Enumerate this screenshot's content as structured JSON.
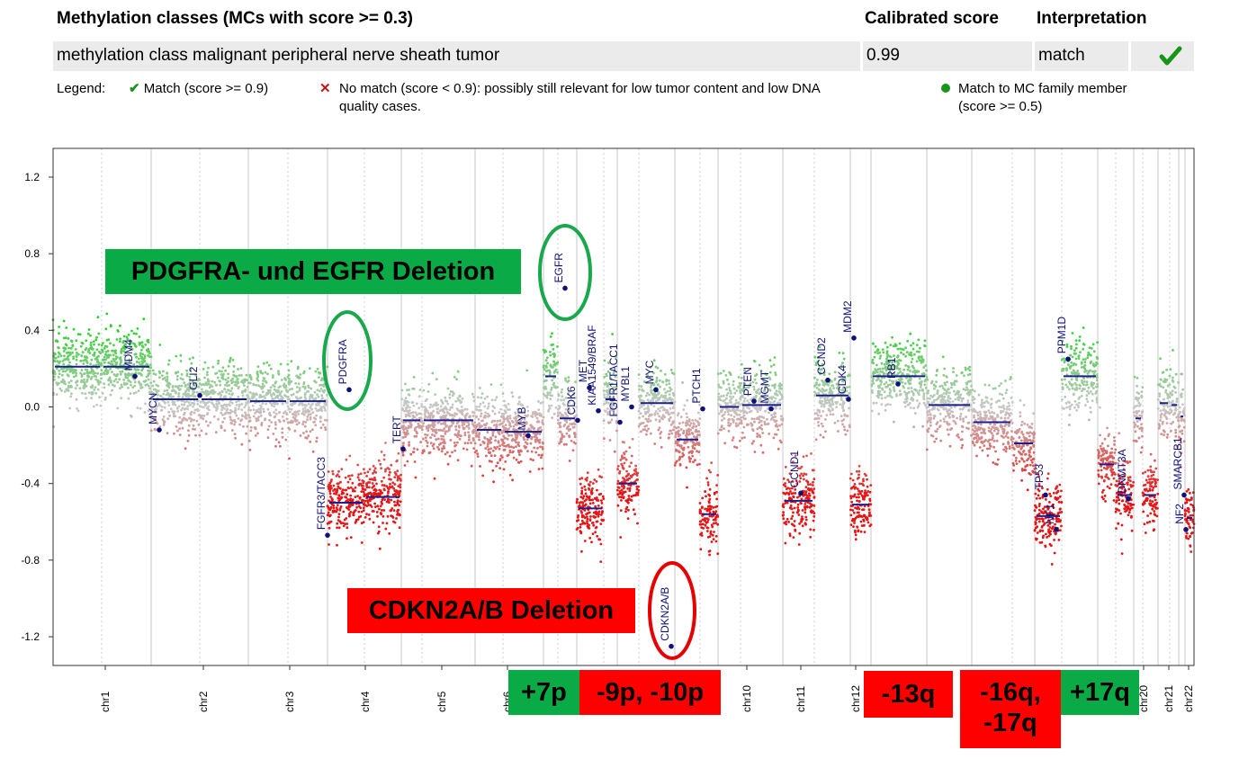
{
  "table": {
    "col_class_header": "Methylation classes (MCs with score >= 0.3)",
    "col_score_header": "Calibrated score",
    "col_interp_header": "Interpretation",
    "row_class": "methylation class malignant peripheral nerve sheath tumor",
    "row_score": "0.99",
    "row_interp": "match",
    "row_icon": "check-icon"
  },
  "legend": {
    "title": "Legend:",
    "match": "Match (score >= 0.9)",
    "no_match_line1": "No match (score < 0.9): possibly still relevant for low tumor content and low DNA",
    "no_match_line2": "quality cases.",
    "family_line1": "Match to MC family member",
    "family_line2": "(score >= 0.5)"
  },
  "annotations": {
    "pdgfra_egfr": "PDGFRA- und EGFR Deletion",
    "cdkn2a": "CDKN2A/B Deletion",
    "gain_7p": "+7p",
    "loss_9p_10p": "-9p, -10p",
    "loss_13q": "-13q",
    "loss_16q_17q_line1": "-16q,",
    "loss_16q_17q_line2": "-17q",
    "gain_17q": "+17q"
  },
  "colors": {
    "gain": "#1ed21e",
    "neutral": "#c8c8c8",
    "loss": "#e61414",
    "segment": "#1c1c8c",
    "gene": "#10107a",
    "ann_green": "#0aaa46",
    "ann_red": "#ff0000",
    "circle_green": "#1aa84c",
    "circle_red": "#e60000"
  },
  "chart_data": {
    "type": "scatter",
    "ylim": [
      -1.35,
      1.35
    ],
    "yticks": [
      "1.2",
      "0.8",
      "0.4",
      "0.0",
      "-0.4",
      "-0.8",
      "-1.2"
    ],
    "ytick_values": [
      1.2,
      0.8,
      0.4,
      0.0,
      -0.4,
      -0.8,
      -1.2
    ],
    "chromosomes": [
      {
        "name": "chr1",
        "p": "0.21",
        "q": "0.21"
      },
      {
        "name": "chr2",
        "p": "0.04",
        "q": "0.04"
      },
      {
        "name": "chr3",
        "p": "0.03",
        "q": "0.03"
      },
      {
        "name": "chr4",
        "p": "-0.50",
        "q": "-0.47"
      },
      {
        "name": "chr5",
        "p": "-0.07",
        "q": "-0.07"
      },
      {
        "name": "chr6",
        "p": "-0.12",
        "q": "-0.13"
      },
      {
        "name": "chr7",
        "p": "0.16",
        "q": "-0.06"
      },
      {
        "name": "chr8",
        "p": "-0.53",
        "q": "0.04"
      },
      {
        "name": "chr9",
        "p": "-0.40",
        "q": "0.02"
      },
      {
        "name": "chr10",
        "p": "-0.17",
        "q": "-0.56"
      },
      {
        "name": "chr11",
        "p": "0.00",
        "q": "0.01"
      },
      {
        "name": "chr12",
        "p": "-0.49",
        "q": "0.06"
      },
      {
        "name": "chr13",
        "p": "",
        "q": "-0.51"
      },
      {
        "name": "chr14",
        "p": "",
        "q": "0.16"
      },
      {
        "name": "chr15",
        "p": "",
        "q": "0.01"
      },
      {
        "name": "chr16",
        "p": "-0.08",
        "q": "-0.19"
      },
      {
        "name": "chr17",
        "p": "-0.57",
        "q": "0.16"
      },
      {
        "name": "chr18",
        "p": "-0.30",
        "q": "-0.46"
      },
      {
        "name": "chr19",
        "p": "-0.06",
        "q": "-0.46"
      },
      {
        "name": "chr20",
        "p": "0.02",
        "q": "0.01"
      },
      {
        "name": "chr21",
        "p": "",
        "q": "-0.05"
      },
      {
        "name": "chr22",
        "p": "",
        "q": "-0.58"
      }
    ],
    "x_tick_labels": [
      "chr1",
      "chr2",
      "chr3",
      "chr4",
      "chr5",
      "chr6",
      "chr10",
      "chr11",
      "chr12",
      "chr20",
      "chr21",
      "chr22"
    ],
    "genes": [
      {
        "name": "MDM4",
        "y": 0.16
      },
      {
        "name": "MYCN",
        "y": -0.12
      },
      {
        "name": "GLI2",
        "y": 0.06
      },
      {
        "name": "FGFR3/TACC3",
        "y": -0.67
      },
      {
        "name": "PDGFRA",
        "y": 0.09
      },
      {
        "name": "TERT",
        "y": -0.22
      },
      {
        "name": "MYB",
        "y": -0.15
      },
      {
        "name": "EGFR",
        "y": 0.62
      },
      {
        "name": "CDK6",
        "y": -0.07
      },
      {
        "name": "MET",
        "y": 0.1
      },
      {
        "name": "KIAA1549/BRAF",
        "y": -0.02
      },
      {
        "name": "FGFR1/TACC1",
        "y": -0.08
      },
      {
        "name": "MYBL1",
        "y": 0.0
      },
      {
        "name": "MYC",
        "y": 0.09
      },
      {
        "name": "CDKN2A/B",
        "y": -1.25
      },
      {
        "name": "PTCH1",
        "y": -0.01
      },
      {
        "name": "PTEN",
        "y": 0.03
      },
      {
        "name": "MGMT",
        "y": -0.01
      },
      {
        "name": "CCND1",
        "y": -0.45
      },
      {
        "name": "CCND2",
        "y": 0.14
      },
      {
        "name": "CDK4",
        "y": 0.04
      },
      {
        "name": "MDM2",
        "y": 0.36
      },
      {
        "name": "RB1",
        "y": 0.12
      },
      {
        "name": "TP53",
        "y": -0.46
      },
      {
        "name": "NF1",
        "y": -0.64
      },
      {
        "name": "PPM1D",
        "y": 0.25
      },
      {
        "name": "SMARCB1",
        "y": -0.46
      },
      {
        "name": "NF2",
        "y": -0.64
      },
      {
        "name": "DNMT3A",
        "y": -0.48
      }
    ]
  }
}
